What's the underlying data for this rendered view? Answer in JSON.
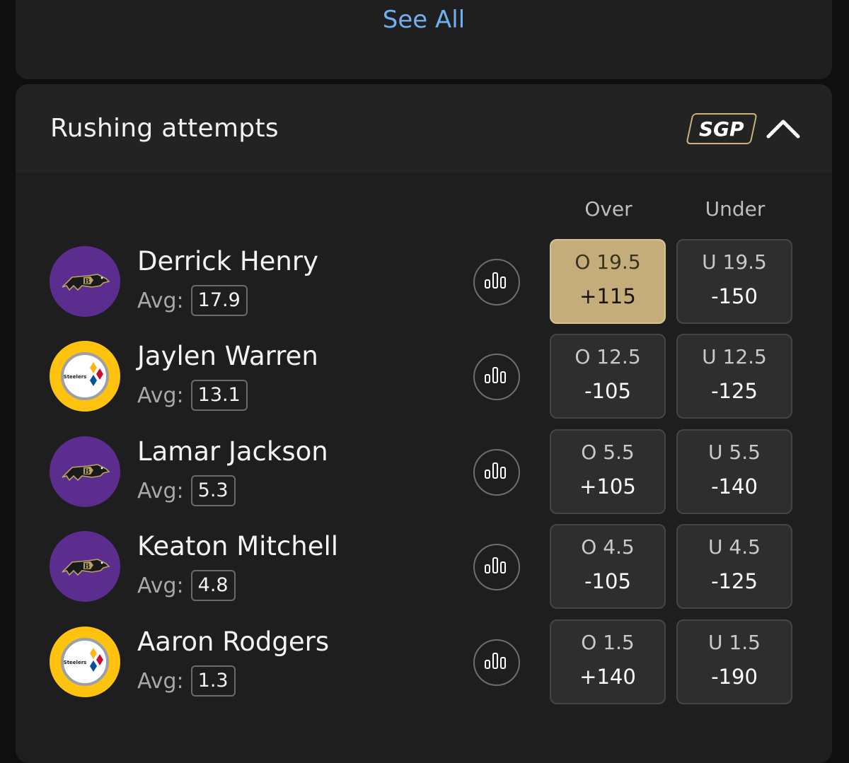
{
  "top_card": {
    "see_all_label": "See All"
  },
  "section": {
    "title": "Rushing attempts",
    "sgp_label": "SGP",
    "columns": {
      "over": "Over",
      "under": "Under"
    }
  },
  "colors": {
    "accent_gold": "#c4ad7a",
    "link_blue": "#6fb1f0",
    "ravens_purple": "#5a2d8f",
    "steelers_gold": "#ffc20e"
  },
  "players": [
    {
      "name": "Derrick Henry",
      "avg_label": "Avg:",
      "avg": "17.9",
      "team_icon": "ravens-logo-icon",
      "over_line": "O 19.5",
      "over_price": "+115",
      "under_line": "U 19.5",
      "under_price": "-150",
      "over_selected": true
    },
    {
      "name": "Jaylen Warren",
      "avg_label": "Avg:",
      "avg": "13.1",
      "team_icon": "steelers-logo-icon",
      "over_line": "O 12.5",
      "over_price": "-105",
      "under_line": "U 12.5",
      "under_price": "-125",
      "over_selected": false
    },
    {
      "name": "Lamar Jackson",
      "avg_label": "Avg:",
      "avg": "5.3",
      "team_icon": "ravens-logo-icon",
      "over_line": "O 5.5",
      "over_price": "+105",
      "under_line": "U 5.5",
      "under_price": "-140",
      "over_selected": false
    },
    {
      "name": "Keaton Mitchell",
      "avg_label": "Avg:",
      "avg": "4.8",
      "team_icon": "ravens-logo-icon",
      "over_line": "O 4.5",
      "over_price": "-105",
      "under_line": "U 4.5",
      "under_price": "-125",
      "over_selected": false
    },
    {
      "name": "Aaron Rodgers",
      "avg_label": "Avg:",
      "avg": "1.3",
      "team_icon": "steelers-logo-icon",
      "over_line": "O 1.5",
      "over_price": "+140",
      "under_line": "U 1.5",
      "under_price": "-190",
      "over_selected": false
    }
  ]
}
